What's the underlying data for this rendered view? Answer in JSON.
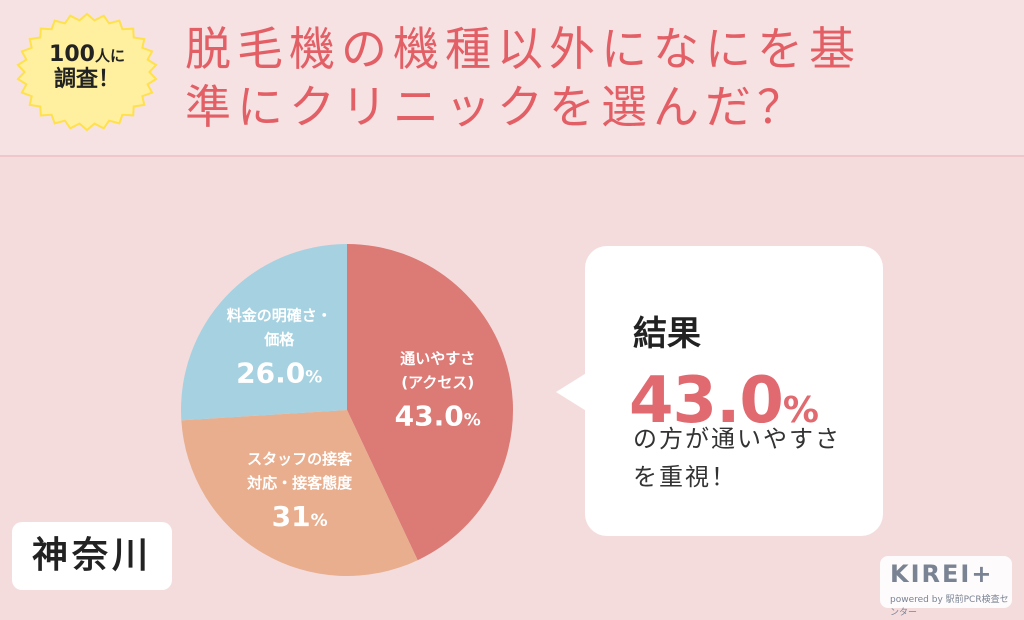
{
  "badge": {
    "count": "100",
    "count_suffix": "人に",
    "line2": "調査！"
  },
  "title": {
    "line1": "脱毛機の機種以外になにを基",
    "line2": "準にクリニックを選んだ？"
  },
  "chart_data": {
    "type": "pie",
    "title": "",
    "slices": [
      {
        "label_lines": [
          "通いやすさ",
          "(アクセス)"
        ],
        "value": 43.0,
        "display": "43.0",
        "color": "#dc7a75"
      },
      {
        "label_lines": [
          "スタッフの接客",
          "対応・接客態度"
        ],
        "value": 31,
        "display": "31",
        "color": "#e8ae8e"
      },
      {
        "label_lines": [
          "料金の明確さ・",
          "価格"
        ],
        "value": 26.0,
        "display": "26.0",
        "color": "#a6d1e0"
      }
    ],
    "unit": "%",
    "label_color": "#ffffff"
  },
  "callout": {
    "heading": "結果",
    "value": "43.0",
    "unit": "%",
    "line1": "の方が通いやすさ",
    "line2": "を重視！"
  },
  "region": "神奈川",
  "logo": {
    "main": "KIREI+",
    "sub": "powered by 駅前PCR検査センター"
  },
  "colors": {
    "background": "#f4dcdd",
    "title": "#e35f66",
    "badge": "#fff0a0",
    "accent": "#e06a70"
  }
}
